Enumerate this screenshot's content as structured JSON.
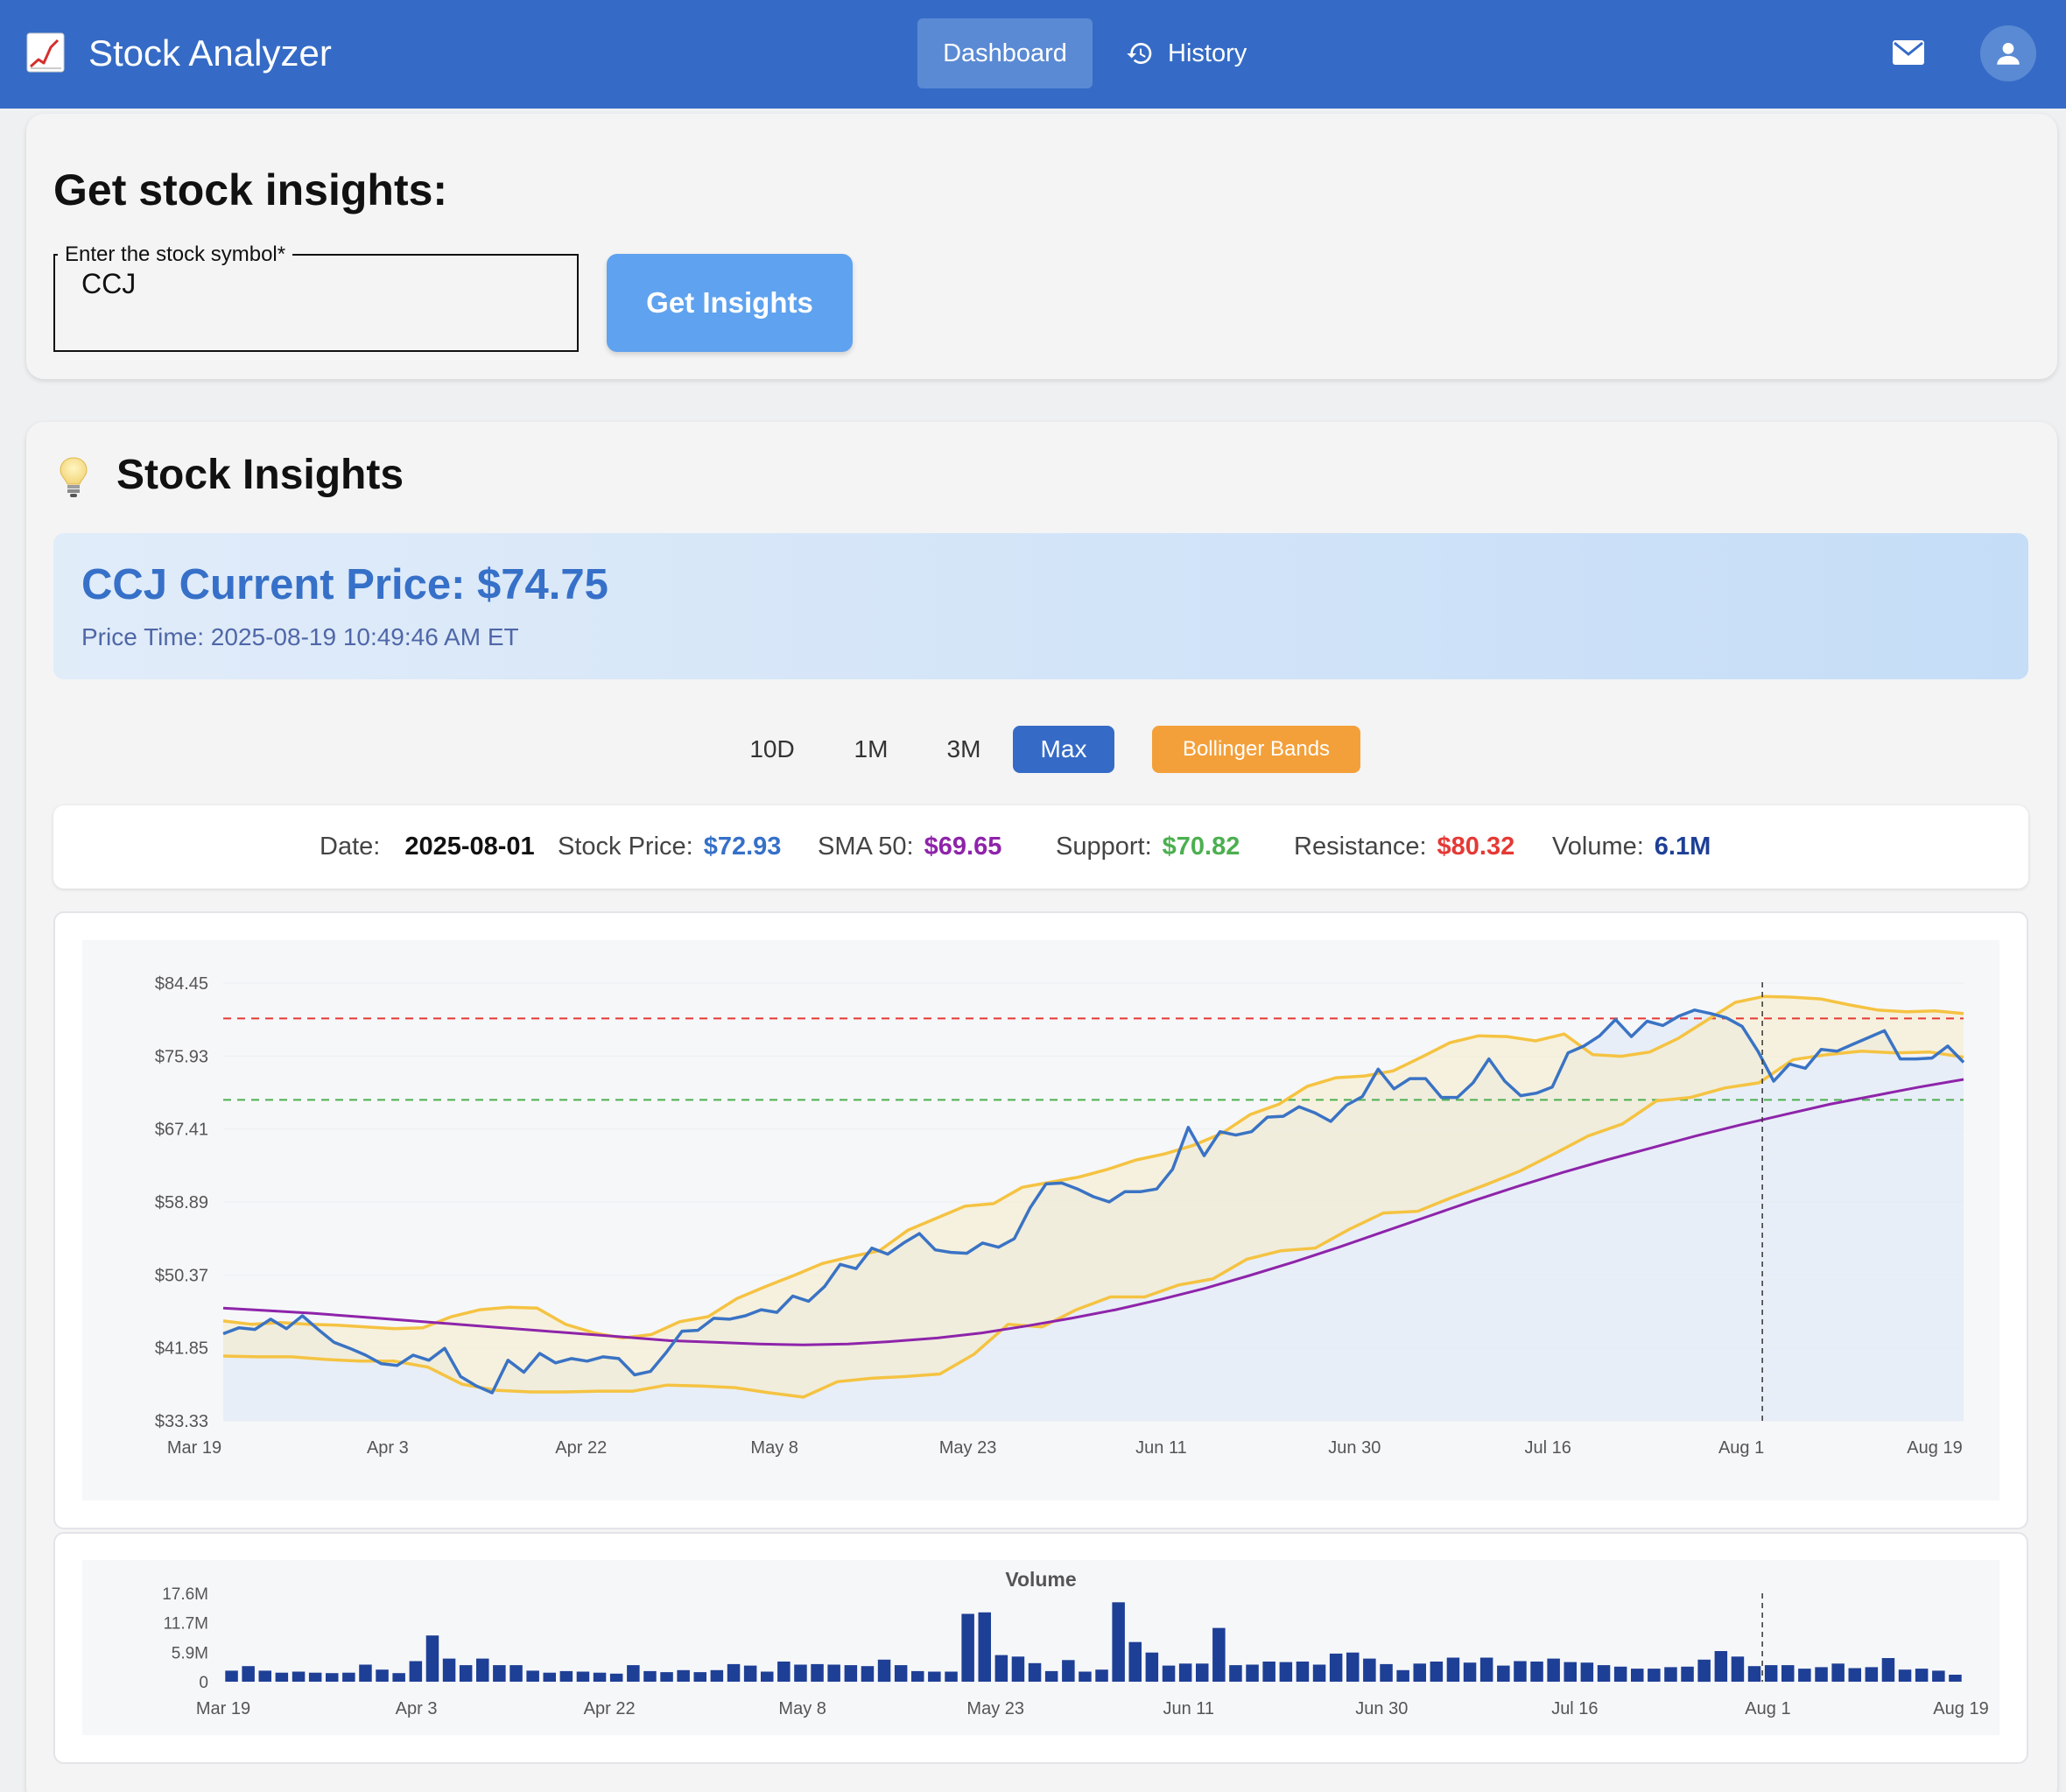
{
  "app": {
    "title": "Stock Analyzer"
  },
  "nav": {
    "dashboard": "Dashboard",
    "history": "History"
  },
  "search": {
    "heading": "Get stock insights:",
    "label": "Enter the stock symbol*",
    "value": "CCJ",
    "button": "Get Insights"
  },
  "insights": {
    "heading": "Stock Insights",
    "price_title": "CCJ Current Price: $74.75",
    "price_time": "Price Time: 2025-08-19 10:49:46 AM ET"
  },
  "ranges": [
    "10D",
    "1M",
    "3M",
    "Max"
  ],
  "selected_range": "Max",
  "bollinger_label": "Bollinger Bands",
  "info": {
    "date_label": "Date:",
    "date": "2025-08-01",
    "price_label": "Stock Price:",
    "price": "$72.93",
    "sma_label": "SMA 50:",
    "sma": "$69.65",
    "support_label": "Support:",
    "support": "$70.82",
    "resistance_label": "Resistance:",
    "resistance": "$80.32",
    "volume_label": "Volume:",
    "volume": "6.1M"
  },
  "colors": {
    "appbar": "#356bc6",
    "price": "#3670c8",
    "sma": "#8e24aa",
    "support": "#4caf50",
    "resistance": "#e53935",
    "band": "#f5c342",
    "volume": "#1e3f96",
    "bollinger": "#f3a03a"
  },
  "chart_data": [
    {
      "type": "line",
      "y_ticks": [
        "$84.45",
        "$75.93",
        "$67.41",
        "$58.89",
        "$50.37",
        "$41.85",
        "$33.33"
      ],
      "x_ticks": [
        "Mar 19",
        "Apr 3",
        "Apr 22",
        "May 8",
        "May 23",
        "Jun 11",
        "Jun 30",
        "Jul 16",
        "Aug 1",
        "Aug 19"
      ],
      "ylim": [
        33.33,
        84.45
      ],
      "support": 70.82,
      "resistance": 80.32,
      "crosshair": "Aug 1",
      "series": [
        {
          "name": "Stock Price",
          "values": [
            43.5,
            44.2,
            44.0,
            45.2,
            44.1,
            45.6,
            44.0,
            42.5,
            41.8,
            41.0,
            40.0,
            39.8,
            41.0,
            40.4,
            41.8,
            38.5,
            37.4,
            36.6,
            40.4,
            39.0,
            41.2,
            40.1,
            40.6,
            40.3,
            40.8,
            40.6,
            38.7,
            39.1,
            41.3,
            43.8,
            43.9,
            45.3,
            45.2,
            45.6,
            46.3,
            46.0,
            47.9,
            47.3,
            49.0,
            51.6,
            51.1,
            53.5,
            52.8,
            54.1,
            55.2,
            53.3,
            53.0,
            52.9,
            54.1,
            53.6,
            54.6,
            58.2,
            61.0,
            61.1,
            60.4,
            59.5,
            58.9,
            60.1,
            60.1,
            60.4,
            62.7,
            67.6,
            64.3,
            67.1,
            66.7,
            67.1,
            68.8,
            68.9,
            70.0,
            69.3,
            68.3,
            70.2,
            71.2,
            74.4,
            72.1,
            73.3,
            73.3,
            71.1,
            71.1,
            72.8,
            75.6,
            73.0,
            71.3,
            71.6,
            72.3,
            76.3,
            77.1,
            78.3,
            80.2,
            78.2,
            80.0,
            79.5,
            80.6,
            81.3,
            80.9,
            80.4,
            79.4,
            76.5,
            73.0,
            75.0,
            74.5,
            76.7,
            76.5,
            77.3,
            78.1,
            78.9,
            75.6,
            75.6,
            75.7,
            77.1,
            75.2
          ]
        },
        {
          "name": "SMA 50",
          "values": [
            46.5,
            46.2,
            45.9,
            45.5,
            45.1,
            44.7,
            44.3,
            43.9,
            43.5,
            43.1,
            42.7,
            42.5,
            42.3,
            42.2,
            42.3,
            42.6,
            43.0,
            43.6,
            44.4,
            45.3,
            46.3,
            47.5,
            48.8,
            50.3,
            51.9,
            53.6,
            55.4,
            57.2,
            59.0,
            60.7,
            62.3,
            63.8,
            65.2,
            66.6,
            67.9,
            69.1,
            70.3,
            71.3,
            72.3,
            73.2
          ]
        },
        {
          "name": "Upper Band",
          "values": [
            45.0,
            44.6,
            44.8,
            44.6,
            44.5,
            44.3,
            44.1,
            44.2,
            45.5,
            46.3,
            46.6,
            46.5,
            44.6,
            43.6,
            43.0,
            43.4,
            44.9,
            45.5,
            47.6,
            49.0,
            50.3,
            51.7,
            52.5,
            53.2,
            55.6,
            57.0,
            58.4,
            58.7,
            60.6,
            61.2,
            61.8,
            62.7,
            63.8,
            64.5,
            65.5,
            66.9,
            69.1,
            70.3,
            72.4,
            73.4,
            73.6,
            74.2,
            75.8,
            77.5,
            78.3,
            78.2,
            77.7,
            78.5,
            76.1,
            75.9,
            76.4,
            78.0,
            80.1,
            82.2,
            82.9,
            82.8,
            82.6,
            81.9,
            81.3,
            81.1,
            81.2,
            80.9
          ]
        },
        {
          "name": "Lower Band",
          "values": [
            40.9,
            40.8,
            40.8,
            40.5,
            40.3,
            40.3,
            39.6,
            37.6,
            36.9,
            36.7,
            36.7,
            36.8,
            36.8,
            37.5,
            37.4,
            37.2,
            36.6,
            36.1,
            37.9,
            38.3,
            38.5,
            38.8,
            41.1,
            44.6,
            44.3,
            46.3,
            47.8,
            47.8,
            49.2,
            49.9,
            52.2,
            53.2,
            53.5,
            55.7,
            57.6,
            57.8,
            59.4,
            60.9,
            62.5,
            64.5,
            66.6,
            68.0,
            70.7,
            71.1,
            72.2,
            72.8,
            75.5,
            76.1,
            76.5,
            76.3,
            76.4,
            75.8
          ]
        }
      ]
    },
    {
      "type": "bar",
      "title": "Volume",
      "y_ticks": [
        "17.6M",
        "11.7M",
        "5.9M",
        "0"
      ],
      "x_ticks": [
        "Mar 19",
        "Apr 3",
        "Apr 22",
        "May 8",
        "May 23",
        "Jun 11",
        "Jun 30",
        "Jul 16",
        "Aug 1",
        "Aug 19"
      ],
      "ylim": [
        0,
        17.6
      ],
      "unit": "M",
      "values": [
        2.2,
        3.1,
        2.2,
        1.8,
        2.0,
        1.8,
        1.7,
        1.8,
        3.4,
        2.4,
        1.7,
        4.1,
        9.2,
        4.6,
        3.3,
        4.6,
        3.3,
        3.3,
        2.2,
        1.8,
        2.1,
        2.0,
        1.8,
        1.6,
        3.3,
        2.1,
        1.9,
        2.3,
        1.9,
        2.3,
        3.5,
        3.2,
        2.0,
        4.0,
        3.4,
        3.5,
        3.4,
        3.3,
        3.1,
        4.4,
        3.3,
        2.1,
        2.0,
        2.0,
        13.5,
        13.8,
        5.3,
        5.0,
        3.7,
        2.1,
        4.3,
        2.0,
        2.4,
        15.8,
        7.9,
        5.8,
        3.2,
        3.6,
        3.6,
        10.7,
        3.3,
        3.4,
        4.0,
        3.9,
        4.0,
        3.4,
        5.6,
        5.8,
        4.6,
        3.5,
        2.3,
        3.6,
        4.0,
        4.8,
        3.8,
        4.8,
        3.2,
        4.1,
        4.0,
        4.6,
        3.9,
        3.8,
        3.3,
        3.0,
        2.6,
        2.6,
        2.9,
        3.0,
        4.4,
        6.1,
        5.0,
        3.1,
        3.3,
        3.3,
        2.6,
        2.9,
        3.6,
        2.7,
        2.9,
        4.7,
        2.4,
        2.6,
        2.2,
        1.4
      ]
    }
  ]
}
